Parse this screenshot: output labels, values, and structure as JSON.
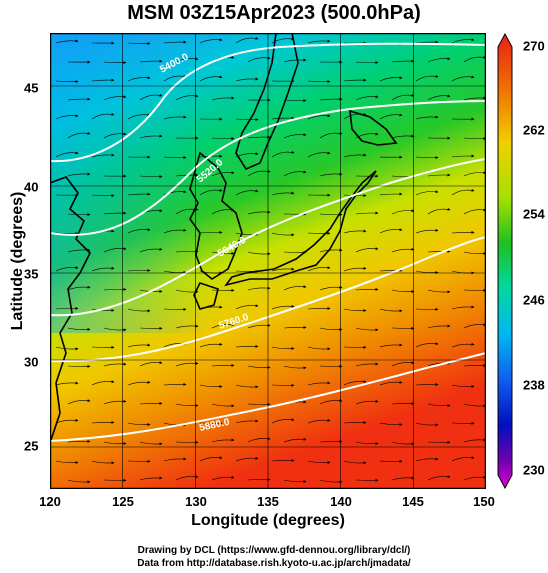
{
  "title": "MSM 03Z15Apr2023 (500.0hPa)",
  "xaxis": {
    "label": "Longitude (degrees)",
    "ticks": [
      "120",
      "125",
      "130",
      "135",
      "140",
      "145",
      "150"
    ]
  },
  "yaxis": {
    "label": "Latitude  (degrees)",
    "ticks": [
      "45",
      "40",
      "35",
      "30",
      "25"
    ]
  },
  "colorbar": {
    "ticks": [
      "270",
      "262",
      "254",
      "246",
      "238",
      "230"
    ],
    "min": 230,
    "max": 270
  },
  "contour_labels": [
    "5400.0",
    "5520.0",
    "5640.0",
    "5760.0",
    "5880.0"
  ],
  "credits": {
    "line1": "Drawing by DCL (https://www.gfd-dennou.org/library/dcl/)",
    "line2": "Data from http://database.rish.kyoto-u.ac.jp/arch/jmadata/"
  }
}
